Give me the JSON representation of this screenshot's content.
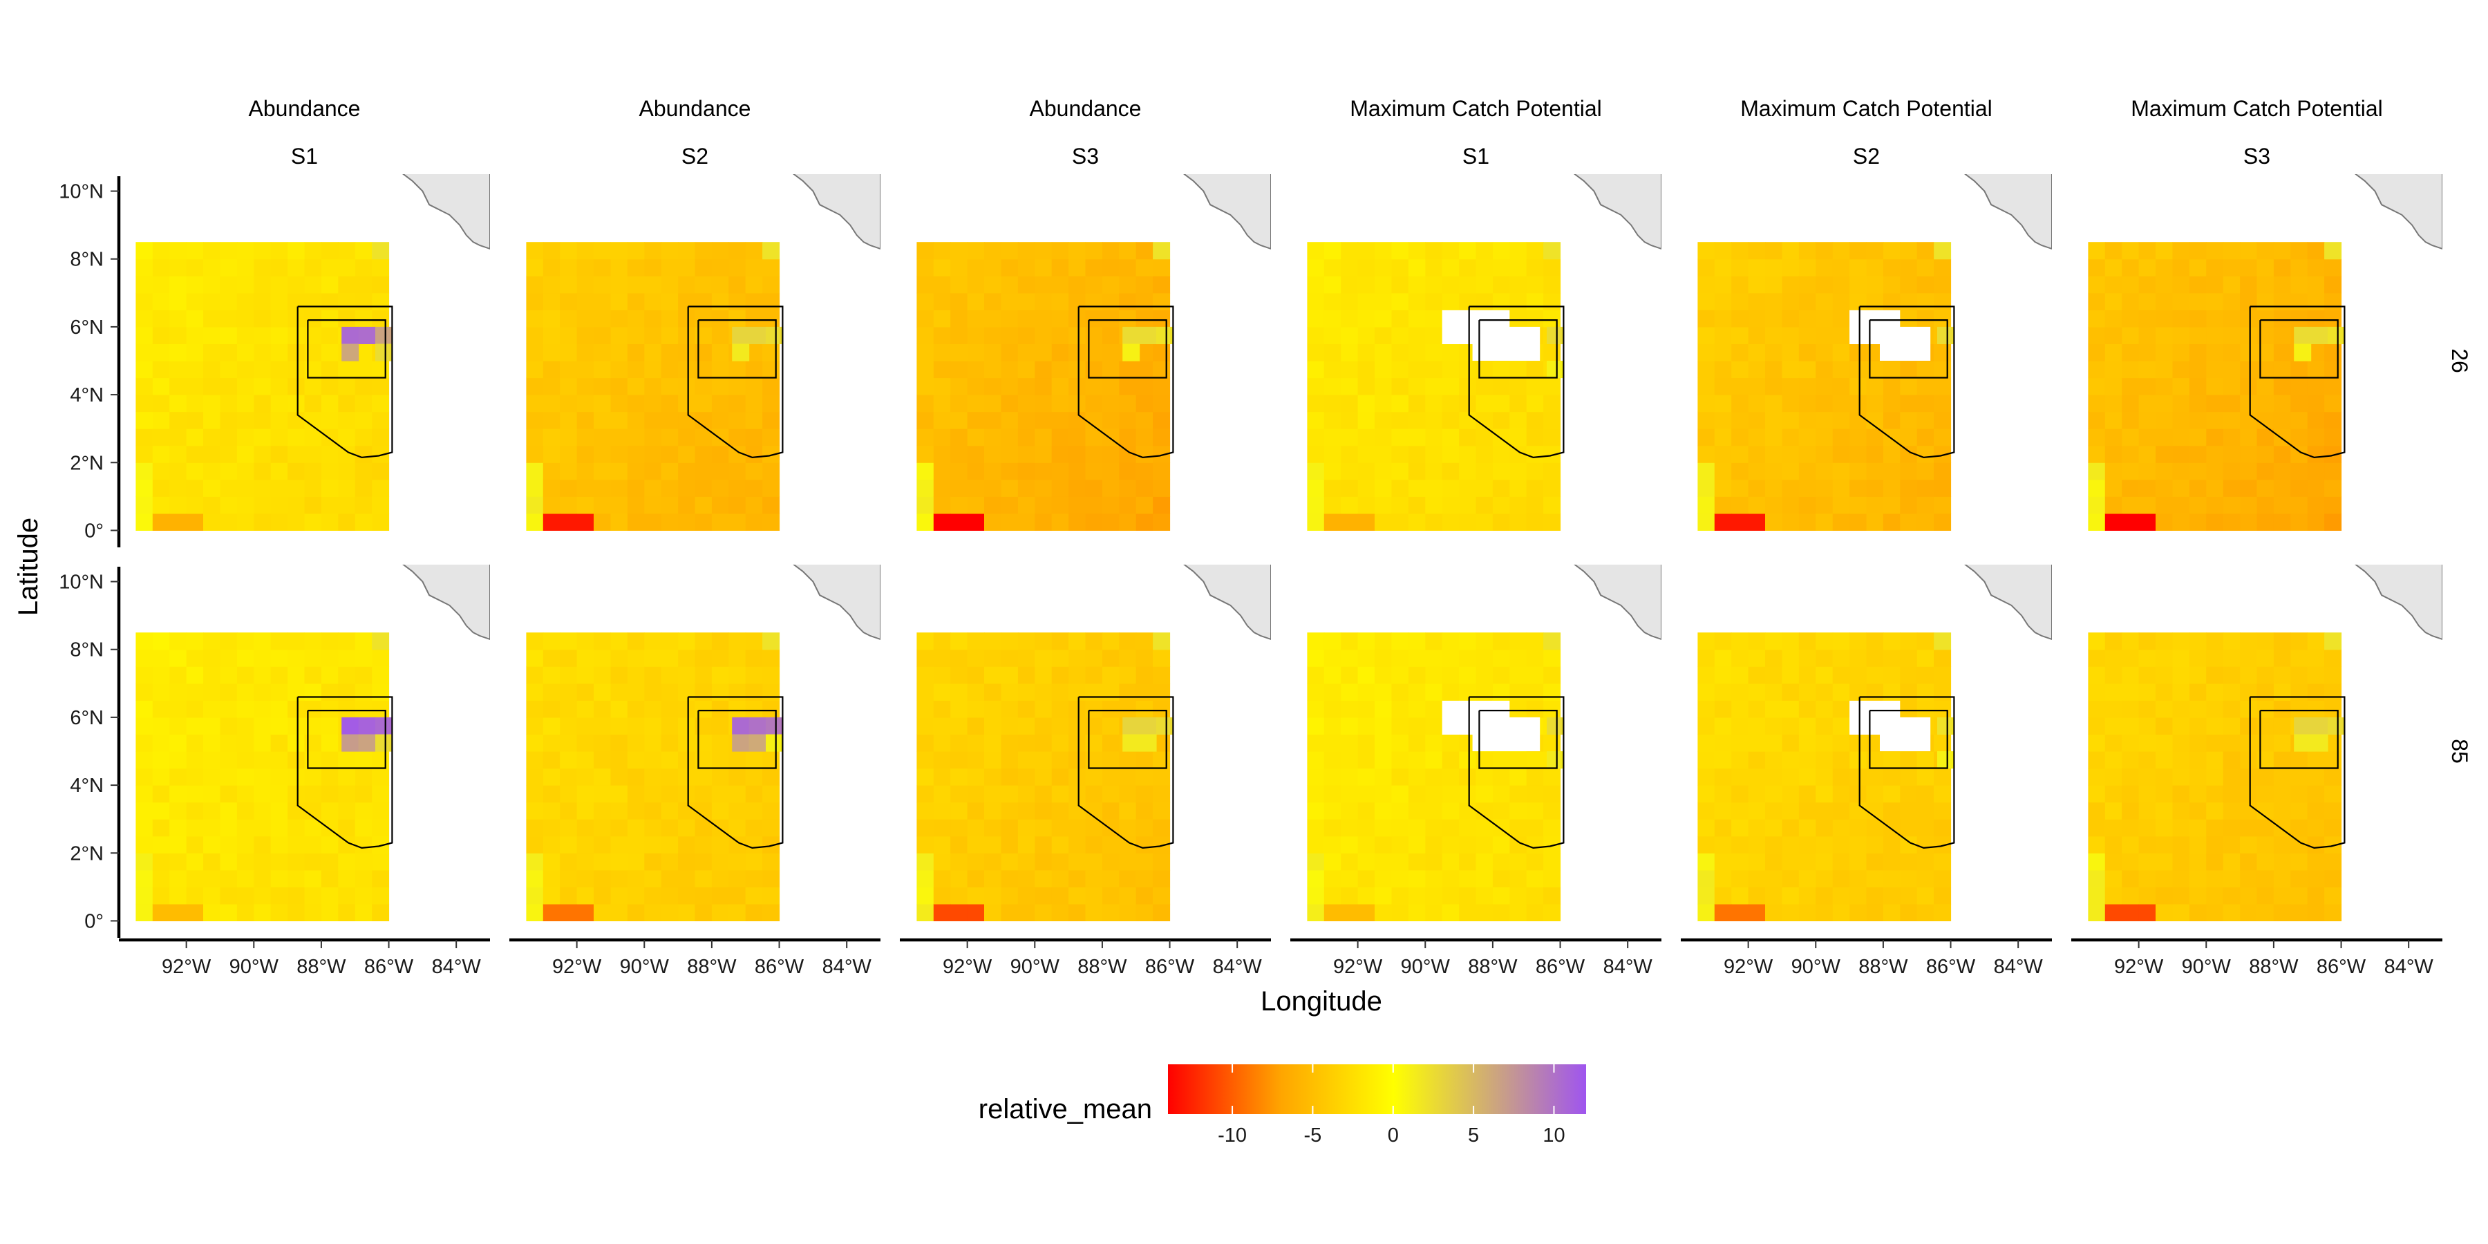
{
  "chart_data": {
    "type": "heatmap",
    "title": "",
    "xlabel": "Longitude",
    "ylabel": "Latitude",
    "facet_columns": [
      {
        "top": "Abundance",
        "bottom": "S1"
      },
      {
        "top": "Abundance",
        "bottom": "S2"
      },
      {
        "top": "Abundance",
        "bottom": "S3"
      },
      {
        "top": "Maximum Catch Potential",
        "bottom": "S1"
      },
      {
        "top": "Maximum Catch Potential",
        "bottom": "S2"
      },
      {
        "top": "Maximum Catch Potential",
        "bottom": "S3"
      }
    ],
    "facet_rows": [
      "26",
      "85"
    ],
    "x_ticks": [
      "92°W",
      "90°W",
      "88°W",
      "86°W",
      "84°W"
    ],
    "x_tick_values": [
      -92,
      -90,
      -88,
      -86,
      -84
    ],
    "y_ticks": [
      "10°N",
      "8°N",
      "6°N",
      "4°N",
      "2°N",
      "0°"
    ],
    "y_tick_values": [
      10,
      8,
      6,
      4,
      2,
      0
    ],
    "xlim": [
      -94,
      -83
    ],
    "ylim": [
      -0.5,
      10.5
    ],
    "grid": {
      "lon_start": -93.5,
      "lat_start": 0,
      "cell_deg": 0.5,
      "cols": 15,
      "rows": 17
    },
    "legend": {
      "title": "relative_mean",
      "placement": "bottom",
      "ticks": [
        "-10",
        "-5",
        "0",
        "5",
        "10"
      ],
      "tick_values": [
        -10,
        -5,
        0,
        5,
        10
      ],
      "range": [
        -14,
        12
      ],
      "colors": [
        "#ff0000",
        "#ffa500",
        "#ffff00",
        "#9f55ef"
      ]
    },
    "colors": {
      "land": "#e5e5e5",
      "land_stroke": "#777777",
      "mpa_outline": "#000000",
      "na_cell": "#ffffff"
    },
    "panels": [
      {
        "row": "26",
        "col": 1,
        "base": -2.3,
        "gradient": -1.2,
        "hotspot": [
          [
            5.9,
            10.5
          ],
          [
            6.4,
            10.3
          ],
          [
            5.4,
            6.5
          ],
          [
            5.9,
            6.2
          ],
          [
            6.9,
            2.5
          ]
        ],
        "na_cells": []
      },
      {
        "row": "26",
        "col": 2,
        "base": -5.0,
        "gradient": -2.0,
        "hotspot": [
          [
            5.4,
            3.0
          ],
          [
            5.9,
            3.0
          ],
          [
            6.4,
            2.5
          ],
          [
            5.9,
            1.5
          ]
        ],
        "na_cells": []
      },
      {
        "row": "26",
        "col": 3,
        "base": -5.8,
        "gradient": -2.3,
        "hotspot": [
          [
            5.4,
            2.5
          ],
          [
            5.9,
            2.5
          ],
          [
            6.4,
            2.0
          ],
          [
            5.9,
            1.0
          ]
        ],
        "na_cells": []
      },
      {
        "row": "26",
        "col": 4,
        "base": -2.3,
        "gradient": -1.2,
        "hotspot": [
          [
            6.4,
            2.5
          ],
          [
            5.9,
            1.0
          ]
        ],
        "na_cells": [
          [
            3,
            8
          ],
          [
            4,
            8
          ],
          [
            5,
            8
          ],
          [
            6,
            8
          ],
          [
            3,
            9
          ],
          [
            4,
            9
          ],
          [
            5,
            9
          ],
          [
            6,
            9
          ]
        ]
      },
      {
        "row": "26",
        "col": 5,
        "base": -5.0,
        "gradient": -2.0,
        "hotspot": [
          [
            6.4,
            2.5
          ]
        ],
        "na_cells": [
          [
            4,
            9
          ],
          [
            5,
            9
          ],
          [
            6,
            9
          ],
          [
            4,
            8
          ],
          [
            5,
            8
          ],
          [
            6,
            8
          ]
        ]
      },
      {
        "row": "26",
        "col": 6,
        "base": -5.8,
        "gradient": -2.3,
        "hotspot": [
          [
            5.4,
            2.5
          ],
          [
            5.9,
            2.5
          ],
          [
            6.4,
            2.0
          ],
          [
            5.9,
            1.0
          ]
        ],
        "na_cells": []
      },
      {
        "row": "85",
        "col": 1,
        "base": -2.0,
        "gradient": -1.0,
        "hotspot": [
          [
            5.4,
            11.5
          ],
          [
            5.9,
            11.0
          ],
          [
            6.4,
            10.5
          ],
          [
            5.4,
            7.0
          ],
          [
            5.9,
            6.5
          ],
          [
            6.9,
            2.5
          ]
        ],
        "na_cells": []
      },
      {
        "row": "85",
        "col": 2,
        "base": -3.5,
        "gradient": -1.5,
        "hotspot": [
          [
            5.4,
            10.5
          ],
          [
            5.9,
            10.0
          ],
          [
            6.4,
            9.5
          ],
          [
            5.4,
            6.5
          ],
          [
            5.9,
            6.0
          ],
          [
            6.9,
            1.0
          ]
        ],
        "na_cells": []
      },
      {
        "row": "85",
        "col": 3,
        "base": -4.2,
        "gradient": -1.7,
        "hotspot": [
          [
            5.4,
            3.0
          ],
          [
            5.9,
            3.0
          ],
          [
            6.4,
            2.5
          ],
          [
            5.4,
            1.5
          ],
          [
            5.9,
            1.5
          ]
        ],
        "na_cells": []
      },
      {
        "row": "85",
        "col": 4,
        "base": -2.0,
        "gradient": -1.0,
        "hotspot": [
          [
            6.4,
            2.5
          ],
          [
            5.4,
            1.5
          ]
        ],
        "na_cells": [
          [
            3,
            8
          ],
          [
            4,
            8
          ],
          [
            5,
            8
          ],
          [
            6,
            8
          ],
          [
            3,
            9
          ],
          [
            4,
            9
          ],
          [
            5,
            9
          ],
          [
            6,
            9
          ]
        ]
      },
      {
        "row": "85",
        "col": 5,
        "base": -3.5,
        "gradient": -1.5,
        "hotspot": [
          [
            6.4,
            2.0
          ],
          [
            5.4,
            1.0
          ]
        ],
        "na_cells": [
          [
            4,
            8
          ],
          [
            5,
            8
          ],
          [
            6,
            8
          ],
          [
            4,
            9
          ],
          [
            5,
            9
          ],
          [
            6,
            9
          ]
        ]
      },
      {
        "row": "85",
        "col": 6,
        "base": -4.2,
        "gradient": -1.7,
        "hotspot": [
          [
            5.4,
            3.0
          ],
          [
            5.9,
            3.0
          ],
          [
            6.4,
            2.5
          ],
          [
            5.4,
            1.5
          ],
          [
            5.9,
            1.5
          ]
        ],
        "na_cells": []
      }
    ],
    "mpa_outer": [
      [
        -88.7,
        6.6
      ],
      [
        -85.9,
        6.6
      ],
      [
        -85.9,
        2.3
      ],
      [
        -86.3,
        2.2
      ],
      [
        -86.8,
        2.15
      ],
      [
        -87.2,
        2.3
      ],
      [
        -88.7,
        3.4
      ],
      [
        -88.7,
        6.6
      ]
    ],
    "mpa_inner": [
      [
        -88.4,
        6.2
      ],
      [
        -86.1,
        6.2
      ],
      [
        -86.1,
        4.5
      ],
      [
        -88.4,
        4.5
      ],
      [
        -88.4,
        6.2
      ]
    ],
    "coastline": [
      [
        -85.9,
        11.2
      ],
      [
        -85.8,
        10.9
      ],
      [
        -85.6,
        10.7
      ],
      [
        -85.7,
        10.6
      ],
      [
        -85.3,
        10.3
      ],
      [
        -85.0,
        10.0
      ],
      [
        -84.8,
        9.6
      ],
      [
        -84.2,
        9.3
      ],
      [
        -83.9,
        9.0
      ],
      [
        -83.7,
        8.7
      ],
      [
        -83.5,
        8.5
      ],
      [
        -83.3,
        8.4
      ],
      [
        -83.0,
        8.3
      ],
      [
        -83.0,
        11.2
      ]
    ]
  }
}
